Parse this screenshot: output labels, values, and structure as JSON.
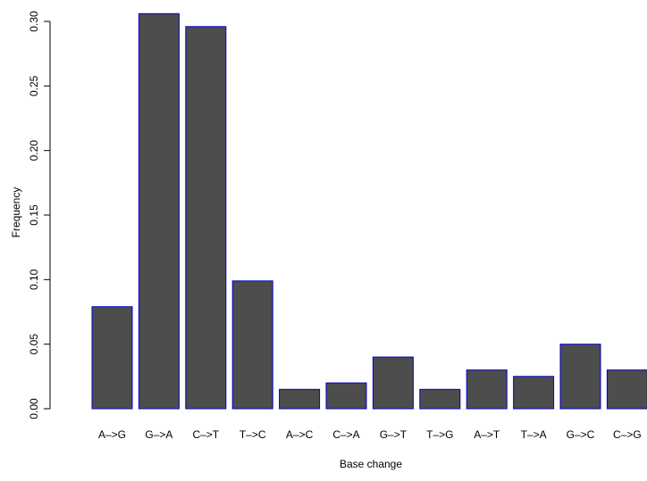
{
  "chart_data": {
    "type": "bar",
    "categories": [
      "A–>G",
      "G–>A",
      "C–>T",
      "T–>C",
      "A–>C",
      "C–>A",
      "G–>T",
      "T–>G",
      "A–>T",
      "T–>A",
      "G–>C",
      "C–>G"
    ],
    "values": [
      0.079,
      0.306,
      0.296,
      0.099,
      0.015,
      0.02,
      0.04,
      0.015,
      0.03,
      0.025,
      0.05,
      0.03
    ],
    "xlabel": "Base change",
    "ylabel": "Frequency",
    "ylim": [
      0,
      0.3
    ],
    "yticks": [
      "0.00",
      "0.05",
      "0.10",
      "0.15",
      "0.20",
      "0.25",
      "0.30"
    ],
    "grid": false,
    "bar_fill": "#4d4d4d",
    "bar_border": "#0000cc"
  }
}
